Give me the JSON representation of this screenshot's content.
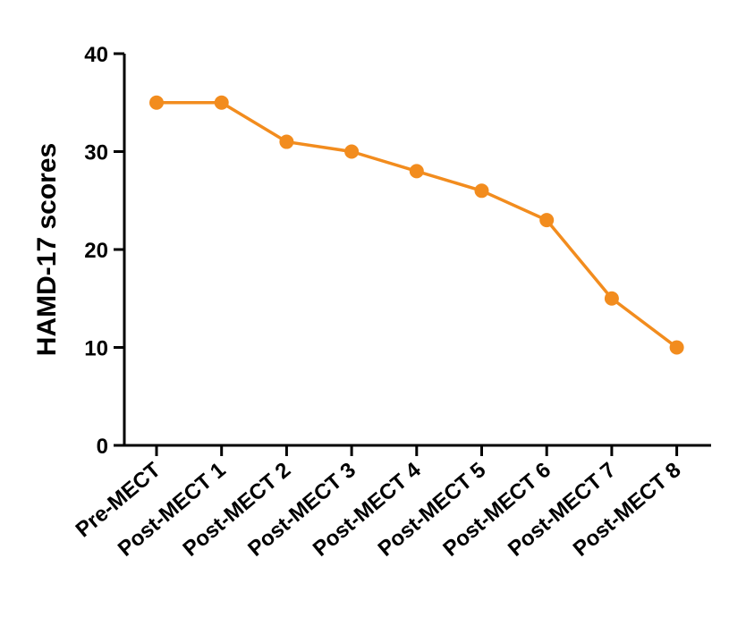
{
  "chart_data": {
    "type": "line",
    "title": "",
    "xlabel": "",
    "ylabel": "HAMD-17 scores",
    "ylim": [
      0,
      40
    ],
    "yticks": [
      0,
      10,
      20,
      30,
      40
    ],
    "categories": [
      "Pre-MECT",
      "Post-MECT 1",
      "Post-MECT 2",
      "Post-MECT 3",
      "Post-MECT 4",
      "Post-MECT 5",
      "Post-MECT 6",
      "Post-MECT 7",
      "Post-MECT 8"
    ],
    "series": [
      {
        "name": "HAMD-17",
        "values": [
          35,
          35,
          31,
          30,
          28,
          26,
          23,
          15,
          10
        ],
        "color": "#F28C1E"
      }
    ],
    "grid": false,
    "legend": "none"
  }
}
